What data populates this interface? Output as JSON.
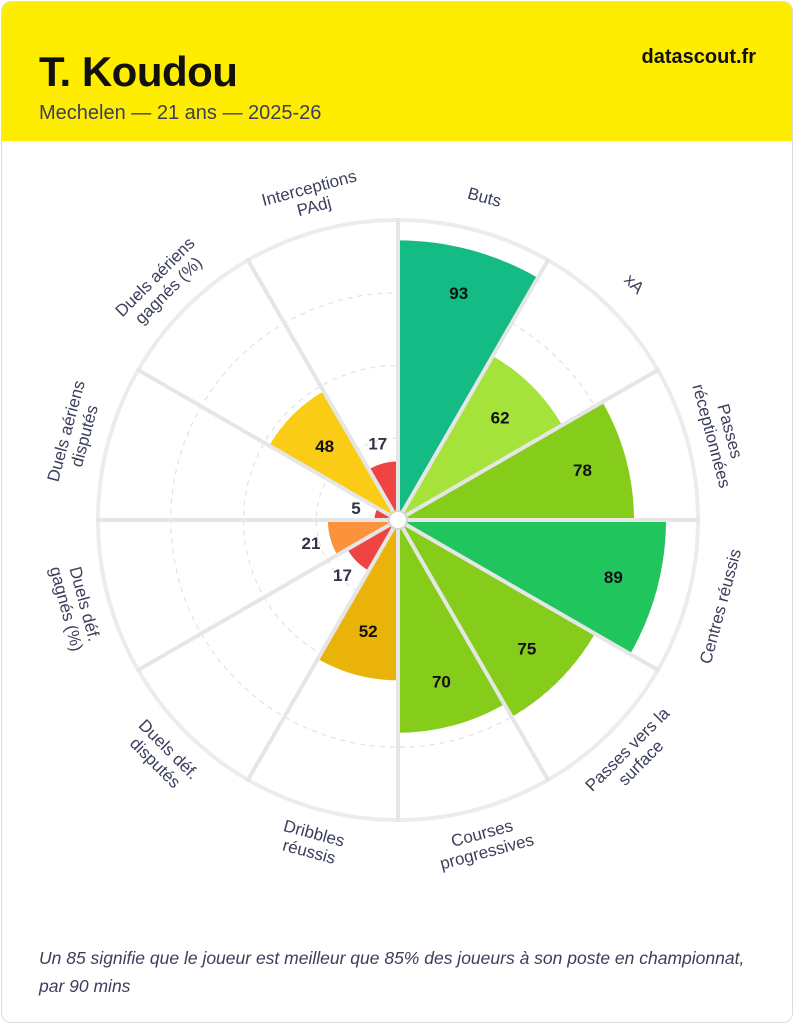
{
  "header": {
    "title": "T. Koudou",
    "subtitle": "Mechelen — 21 ans — 2025-26",
    "brand": "datascout.fr",
    "background_color": "#ffed00"
  },
  "chart_data": {
    "type": "polar-bar",
    "max": 100,
    "grid": true,
    "categories": [
      {
        "label": [
          "Buts"
        ],
        "value": 93,
        "color": "#14bb85"
      },
      {
        "label": [
          "xA"
        ],
        "value": 62,
        "color": "#a5e33a"
      },
      {
        "label": [
          "Passes",
          "réceptionnées"
        ],
        "value": 78,
        "color": "#86cc1b"
      },
      {
        "label": [
          "Centres réussis"
        ],
        "value": 89,
        "color": "#21c55e"
      },
      {
        "label": [
          "Passes vers la",
          "surface"
        ],
        "value": 75,
        "color": "#86cc1b"
      },
      {
        "label": [
          "Courses",
          "progressives"
        ],
        "value": 70,
        "color": "#86cc1b"
      },
      {
        "label": [
          "Dribbles",
          "réussis"
        ],
        "value": 52,
        "color": "#eab309"
      },
      {
        "label": [
          "Duels déf.",
          "disputés"
        ],
        "value": 17,
        "color": "#ef4444"
      },
      {
        "label": [
          "Duels déf.",
          "gagnés (%)"
        ],
        "value": 21,
        "color": "#fb923c"
      },
      {
        "label": [
          "Duels aériens",
          "disputés"
        ],
        "value": 5,
        "color": "#ef4444"
      },
      {
        "label": [
          "Duels aériens",
          "gagnés (%)"
        ],
        "value": 48,
        "color": "#facc15"
      },
      {
        "label": [
          "Interceptions",
          "PAdj"
        ],
        "value": 17,
        "color": "#ef4444"
      }
    ]
  },
  "footnote": "Un 85 signifie que le joueur est meilleur que 85% des joueurs à son poste en championnat, par 90 mins"
}
